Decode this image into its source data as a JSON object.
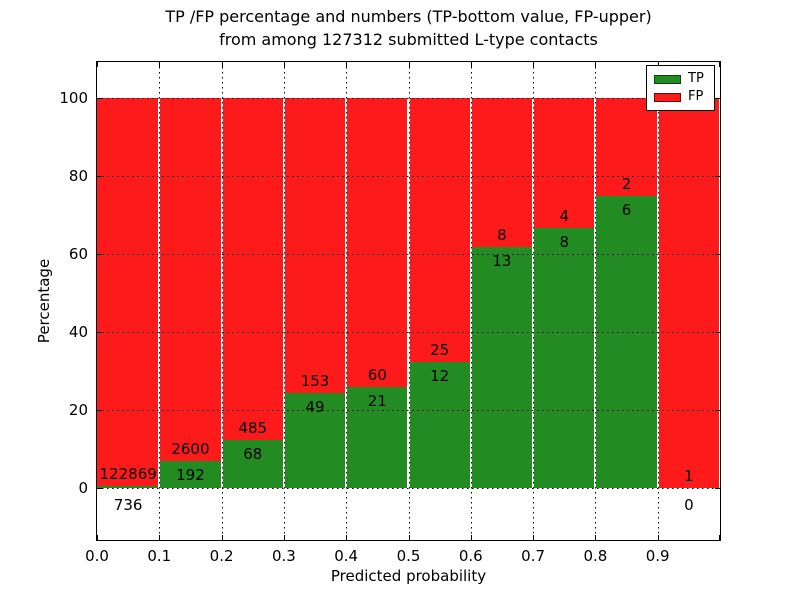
{
  "figure": {
    "title_line1": "TP /FP percentage and numbers (TP-bottom value, FP-upper)",
    "title_line2": "from among 127312 submitted L-type contacts",
    "xlabel": "Predicted probability",
    "ylabel": "Percentage"
  },
  "legend": {
    "position": "upper right",
    "items": [
      {
        "label": "TP",
        "color": "#228b22"
      },
      {
        "label": "FP",
        "color": "#fc1a1a"
      }
    ]
  },
  "chart_data": {
    "type": "bar",
    "stacked": true,
    "title": "TP /FP percentage and numbers (TP-bottom value, FP-upper) from among 127312 submitted L-type contacts",
    "xlabel": "Predicted probability",
    "ylabel": "Percentage",
    "total_submitted": 127312,
    "bin_width": 0.1,
    "categories": [
      "0.0-0.1",
      "0.1-0.2",
      "0.2-0.3",
      "0.3-0.4",
      "0.4-0.5",
      "0.5-0.6",
      "0.6-0.7",
      "0.7-0.8",
      "0.8-0.9",
      "0.9-1.0"
    ],
    "series": [
      {
        "name": "TP",
        "color": "#228b22",
        "values": [
          736,
          192,
          68,
          49,
          21,
          12,
          13,
          8,
          6,
          0
        ]
      },
      {
        "name": "FP",
        "color": "#fc1a1a",
        "values": [
          122869,
          2600,
          485,
          153,
          60,
          25,
          8,
          4,
          2,
          1
        ]
      }
    ],
    "tp_percent": [
      0.6,
      6.88,
      12.3,
      24.26,
      25.93,
      32.43,
      61.9,
      66.67,
      75.0,
      0.0
    ],
    "x_ticks": [
      "0.0",
      "0.1",
      "0.2",
      "0.3",
      "0.4",
      "0.5",
      "0.6",
      "0.7",
      "0.8",
      "0.9"
    ],
    "y_ticks": [
      "0",
      "20",
      "40",
      "60",
      "80",
      "100"
    ],
    "y_tick_values": [
      0,
      20,
      40,
      60,
      80,
      100
    ],
    "xlim": [
      0.0,
      1.0
    ],
    "ylim": [
      -13.3,
      109.2
    ],
    "grid": "dotted",
    "legend_position": "upper right"
  }
}
